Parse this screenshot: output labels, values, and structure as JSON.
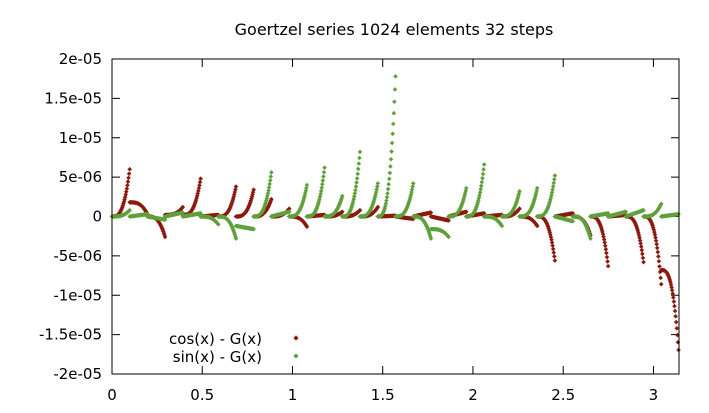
{
  "chart_data": {
    "type": "scatter",
    "title": "Goertzel series 1024 elements 32 steps",
    "xlabel": "",
    "ylabel": "",
    "xlim": [
      0,
      3.14159
    ],
    "ylim": [
      -2e-05,
      2e-05
    ],
    "xticks": [
      0,
      0.5,
      1,
      1.5,
      2,
      2.5,
      3
    ],
    "xtick_labels": [
      "0",
      "0.5",
      "1",
      "1.5",
      "2",
      "2.5",
      "3"
    ],
    "yticks": [
      2e-05,
      1.5e-05,
      1e-05,
      5e-06,
      0,
      -5e-06,
      -1e-05,
      -1.5e-05,
      -2e-05
    ],
    "ytick_labels": [
      "2e-05",
      "1.5e-05",
      "1e-05",
      "5e-06",
      "0",
      "-5e-06",
      "-1e-05",
      "-1.5e-05",
      "-2e-05"
    ],
    "legend_position": "bottom-left",
    "grid": false,
    "series": [
      {
        "name": "cos(x) - G(x)",
        "color": "#8b1a0e",
        "marker": "diamond",
        "segments": [
          {
            "x0": 0.0,
            "x1": 0.098,
            "y0": 0.0,
            "y1": 6e-06,
            "shape": "rise"
          },
          {
            "x0": 0.098,
            "x1": 0.196,
            "y0": 1.8e-06,
            "y1": 3e-07,
            "shape": "decay"
          },
          {
            "x0": 0.196,
            "x1": 0.294,
            "y0": 0.0,
            "y1": -2.6e-06,
            "shape": "drop"
          },
          {
            "x0": 0.294,
            "x1": 0.392,
            "y0": 2e-07,
            "y1": 1.2e-06,
            "shape": "rise"
          },
          {
            "x0": 0.392,
            "x1": 0.491,
            "y0": 2e-07,
            "y1": 4.8e-06,
            "shape": "rise"
          },
          {
            "x0": 0.491,
            "x1": 0.589,
            "y0": 0.0,
            "y1": 2e-07,
            "shape": "flat"
          },
          {
            "x0": 0.589,
            "x1": 0.687,
            "y0": 0.0,
            "y1": 3.8e-06,
            "shape": "rise"
          },
          {
            "x0": 0.687,
            "x1": 0.785,
            "y0": 0.0,
            "y1": 3.4e-06,
            "shape": "rise"
          },
          {
            "x0": 0.785,
            "x1": 0.883,
            "y0": 0.0,
            "y1": 2.2e-06,
            "shape": "rise"
          },
          {
            "x0": 0.883,
            "x1": 0.982,
            "y0": 0.0,
            "y1": 1e-06,
            "shape": "rise"
          },
          {
            "x0": 0.982,
            "x1": 1.08,
            "y0": 0.0,
            "y1": -1.3e-06,
            "shape": "drop"
          },
          {
            "x0": 1.08,
            "x1": 1.178,
            "y0": 0.0,
            "y1": 2e-07,
            "shape": "flat"
          },
          {
            "x0": 1.178,
            "x1": 1.276,
            "y0": 0.0,
            "y1": 6e-07,
            "shape": "rise"
          },
          {
            "x0": 1.276,
            "x1": 1.374,
            "y0": 0.0,
            "y1": 8e-07,
            "shape": "rise"
          },
          {
            "x0": 1.374,
            "x1": 1.473,
            "y0": 0.0,
            "y1": 1.2e-06,
            "shape": "rise"
          },
          {
            "x0": 1.473,
            "x1": 1.571,
            "y0": 0.0,
            "y1": 1e-07,
            "shape": "flat"
          },
          {
            "x0": 1.571,
            "x1": 1.669,
            "y0": 0.0,
            "y1": -3e-07,
            "shape": "flat"
          },
          {
            "x0": 1.669,
            "x1": 1.767,
            "y0": 0.0,
            "y1": 5e-07,
            "shape": "flat"
          },
          {
            "x0": 1.767,
            "x1": 1.865,
            "y0": 0.0,
            "y1": -5e-07,
            "shape": "flat"
          },
          {
            "x0": 1.865,
            "x1": 1.963,
            "y0": 0.0,
            "y1": 6e-07,
            "shape": "flat"
          },
          {
            "x0": 1.963,
            "x1": 2.062,
            "y0": 0.0,
            "y1": 4e-07,
            "shape": "flat"
          },
          {
            "x0": 2.062,
            "x1": 2.16,
            "y0": 0.0,
            "y1": 2e-07,
            "shape": "flat"
          },
          {
            "x0": 2.16,
            "x1": 2.258,
            "y0": 0.0,
            "y1": 1e-06,
            "shape": "rise"
          },
          {
            "x0": 2.258,
            "x1": 2.356,
            "y0": 0.0,
            "y1": -1.2e-06,
            "shape": "drop"
          },
          {
            "x0": 2.356,
            "x1": 2.454,
            "y0": 0.0,
            "y1": -5.6e-06,
            "shape": "drop"
          },
          {
            "x0": 2.454,
            "x1": 2.553,
            "y0": 0.0,
            "y1": 4e-07,
            "shape": "flat"
          },
          {
            "x0": 2.553,
            "x1": 2.651,
            "y0": 0.0,
            "y1": -2.4e-06,
            "shape": "drop"
          },
          {
            "x0": 2.651,
            "x1": 2.749,
            "y0": 0.0,
            "y1": -6.3e-06,
            "shape": "drop"
          },
          {
            "x0": 2.749,
            "x1": 2.847,
            "y0": 0.0,
            "y1": 2e-07,
            "shape": "flat"
          },
          {
            "x0": 2.847,
            "x1": 2.945,
            "y0": 0.0,
            "y1": -5.8e-06,
            "shape": "drop"
          },
          {
            "x0": 2.945,
            "x1": 3.043,
            "y0": 0.0,
            "y1": -8.6e-06,
            "shape": "drop"
          },
          {
            "x0": 3.043,
            "x1": 3.142,
            "y0": -6.8e-06,
            "y1": -1.8e-05,
            "shape": "drop"
          }
        ]
      },
      {
        "name": "sin(x) - G(x)",
        "color": "#5fa03a",
        "marker": "diamond",
        "segments": [
          {
            "x0": 0.0,
            "x1": 0.098,
            "y0": 0.0,
            "y1": 8e-07,
            "shape": "rise"
          },
          {
            "x0": 0.098,
            "x1": 0.196,
            "y0": 0.0,
            "y1": 3e-07,
            "shape": "flat"
          },
          {
            "x0": 0.196,
            "x1": 0.294,
            "y0": 0.0,
            "y1": -4e-07,
            "shape": "flat"
          },
          {
            "x0": 0.294,
            "x1": 0.392,
            "y0": 0.0,
            "y1": 5e-07,
            "shape": "flat"
          },
          {
            "x0": 0.392,
            "x1": 0.491,
            "y0": 0.0,
            "y1": 4e-07,
            "shape": "flat"
          },
          {
            "x0": 0.491,
            "x1": 0.589,
            "y0": 0.0,
            "y1": -1e-06,
            "shape": "drop"
          },
          {
            "x0": 0.589,
            "x1": 0.687,
            "y0": 0.0,
            "y1": -2.8e-06,
            "shape": "drop"
          },
          {
            "x0": 0.687,
            "x1": 0.785,
            "y0": -1.2e-06,
            "y1": -1.6e-06,
            "shape": "flat"
          },
          {
            "x0": 0.785,
            "x1": 0.883,
            "y0": 0.0,
            "y1": 5.6e-06,
            "shape": "rise"
          },
          {
            "x0": 0.883,
            "x1": 0.982,
            "y0": 0.0,
            "y1": 6e-07,
            "shape": "flat"
          },
          {
            "x0": 0.982,
            "x1": 1.08,
            "y0": 0.0,
            "y1": 4e-06,
            "shape": "rise"
          },
          {
            "x0": 1.08,
            "x1": 1.178,
            "y0": 0.0,
            "y1": 6.2e-06,
            "shape": "rise"
          },
          {
            "x0": 1.178,
            "x1": 1.276,
            "y0": 0.0,
            "y1": 2.6e-06,
            "shape": "rise"
          },
          {
            "x0": 1.276,
            "x1": 1.374,
            "y0": 0.0,
            "y1": 8.2e-06,
            "shape": "rise"
          },
          {
            "x0": 1.374,
            "x1": 1.473,
            "y0": 0.0,
            "y1": 4.2e-06,
            "shape": "rise"
          },
          {
            "x0": 1.473,
            "x1": 1.571,
            "y0": 0.0,
            "y1": 1.78e-05,
            "shape": "rise"
          },
          {
            "x0": 1.571,
            "x1": 1.669,
            "y0": 0.0,
            "y1": 4.2e-06,
            "shape": "rise"
          },
          {
            "x0": 1.669,
            "x1": 1.767,
            "y0": 0.0,
            "y1": -2.8e-06,
            "shape": "drop"
          },
          {
            "x0": 1.767,
            "x1": 1.865,
            "y0": -1.6e-06,
            "y1": -2.6e-06,
            "shape": "drop"
          },
          {
            "x0": 1.865,
            "x1": 1.963,
            "y0": 0.0,
            "y1": 3.6e-06,
            "shape": "rise"
          },
          {
            "x0": 1.963,
            "x1": 2.062,
            "y0": 0.0,
            "y1": 6.6e-06,
            "shape": "rise"
          },
          {
            "x0": 2.062,
            "x1": 2.16,
            "y0": 0.0,
            "y1": -1.2e-06,
            "shape": "drop"
          },
          {
            "x0": 2.16,
            "x1": 2.258,
            "y0": 0.0,
            "y1": 3.2e-06,
            "shape": "rise"
          },
          {
            "x0": 2.258,
            "x1": 2.356,
            "y0": 0.0,
            "y1": 3.6e-06,
            "shape": "rise"
          },
          {
            "x0": 2.356,
            "x1": 2.454,
            "y0": 0.0,
            "y1": 5.2e-06,
            "shape": "rise"
          },
          {
            "x0": 2.454,
            "x1": 2.553,
            "y0": 0.0,
            "y1": -6e-07,
            "shape": "flat"
          },
          {
            "x0": 2.553,
            "x1": 2.651,
            "y0": 0.0,
            "y1": -2.8e-06,
            "shape": "drop"
          },
          {
            "x0": 2.651,
            "x1": 2.749,
            "y0": 0.0,
            "y1": 4e-07,
            "shape": "flat"
          },
          {
            "x0": 2.749,
            "x1": 2.847,
            "y0": 0.0,
            "y1": 6e-07,
            "shape": "flat"
          },
          {
            "x0": 2.847,
            "x1": 2.945,
            "y0": 0.0,
            "y1": 8e-07,
            "shape": "flat"
          },
          {
            "x0": 2.945,
            "x1": 3.043,
            "y0": 0.0,
            "y1": 1.6e-06,
            "shape": "rise"
          },
          {
            "x0": 3.043,
            "x1": 3.142,
            "y0": 0.0,
            "y1": 3e-07,
            "shape": "flat"
          }
        ]
      }
    ]
  }
}
